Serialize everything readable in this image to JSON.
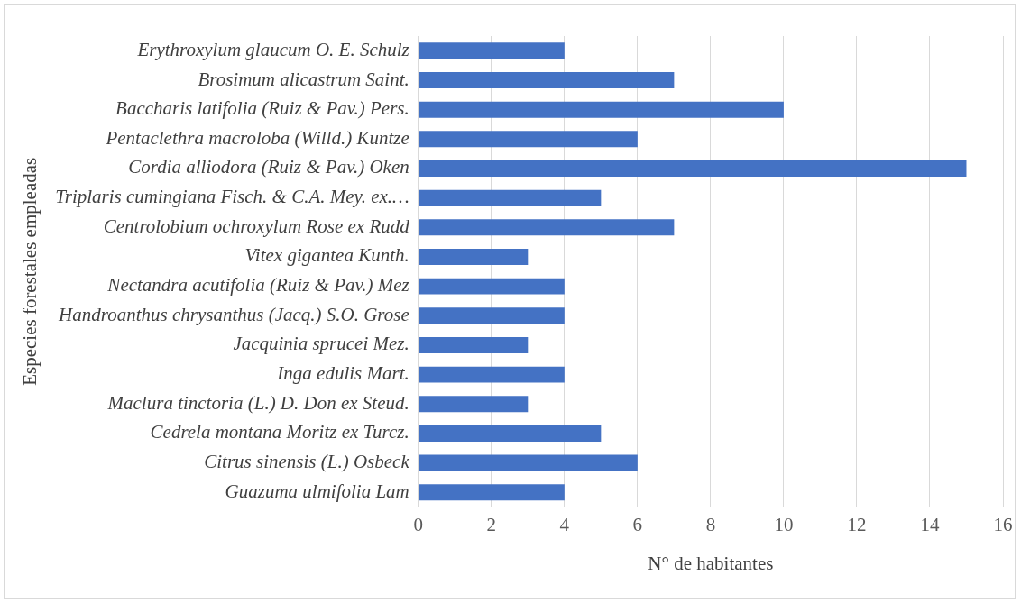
{
  "chart_data": {
    "type": "bar",
    "orientation": "horizontal",
    "xlabel": "N° de habitantes",
    "ylabel": "Especies forestales empleadas",
    "categories": [
      "Erythroxylum glaucum O. E. Schulz",
      "Brosimum alicastrum Saint.",
      "Baccharis latifolia (Ruiz & Pav.) Pers.",
      "Pentaclethra macroloba (Willd.) Kuntze",
      "Cordia alliodora (Ruiz & Pav.) Oken",
      "Triplaris cumingiana Fisch. & C.A. Mey. ex.…",
      "Centrolobium ochroxylum Rose ex Rudd",
      "Vitex gigantea Kunth.",
      "Nectandra acutifolia (Ruiz & Pav.) Mez",
      "Handroanthus chrysanthus (Jacq.) S.O. Grose",
      "Jacquinia sprucei Mez.",
      "Inga edulis Mart.",
      "Maclura tinctoria (L.) D. Don ex Steud.",
      "Cedrela montana Moritz ex Turcz.",
      "Citrus sinensis (L.) Osbeck",
      "Guazuma ulmifolia Lam"
    ],
    "values": [
      4,
      7,
      10,
      6,
      15,
      5,
      7,
      3,
      4,
      4,
      3,
      4,
      3,
      5,
      6,
      4
    ],
    "color": "#4472c4",
    "xlim": [
      0,
      16
    ],
    "xticks": [
      0,
      2,
      4,
      6,
      8,
      10,
      12,
      14,
      16
    ],
    "grid": "x",
    "legend": false
  }
}
